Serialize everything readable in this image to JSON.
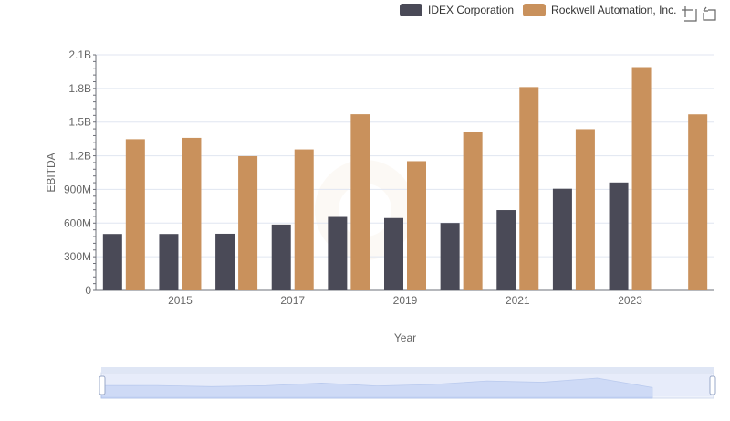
{
  "legend": {
    "items": [
      {
        "label": "IDEX Corporation",
        "color": "#4a4a57"
      },
      {
        "label": "Rockwell Automation, Inc.",
        "color": "#c9915c"
      }
    ]
  },
  "toolbox": {
    "icons": [
      "zoom-icon",
      "restore-icon"
    ]
  },
  "chart_data": {
    "type": "bar",
    "xlabel": "Year",
    "ylabel": "EBITDA",
    "ylim": [
      0,
      2100000000
    ],
    "yticks": [
      "0",
      "300M",
      "600M",
      "900M",
      "1.2B",
      "1.5B",
      "1.8B",
      "2.1B"
    ],
    "categories": [
      "2014",
      "2015",
      "2016",
      "2017",
      "2018",
      "2019",
      "2020",
      "2021",
      "2022",
      "2023",
      "2024"
    ],
    "xtick_labels": [
      "2015",
      "2017",
      "2019",
      "2021",
      "2023"
    ],
    "series": [
      {
        "name": "IDEX Corporation",
        "color": "#4a4a57",
        "values": [
          503000000,
          503000000,
          505000000,
          587000000,
          655000000,
          645000000,
          601000000,
          716000000,
          906000000,
          962000000,
          null
        ]
      },
      {
        "name": "Rockwell Automation, Inc.",
        "color": "#c9915c",
        "values": [
          1348000000,
          1360000000,
          1197000000,
          1257000000,
          1570000000,
          1152000000,
          1414000000,
          1812000000,
          1437000000,
          1990000000,
          1569000000
        ]
      }
    ],
    "grid": true,
    "legend_position": "top-right"
  },
  "datazoom": {
    "range": [
      0,
      100
    ]
  }
}
